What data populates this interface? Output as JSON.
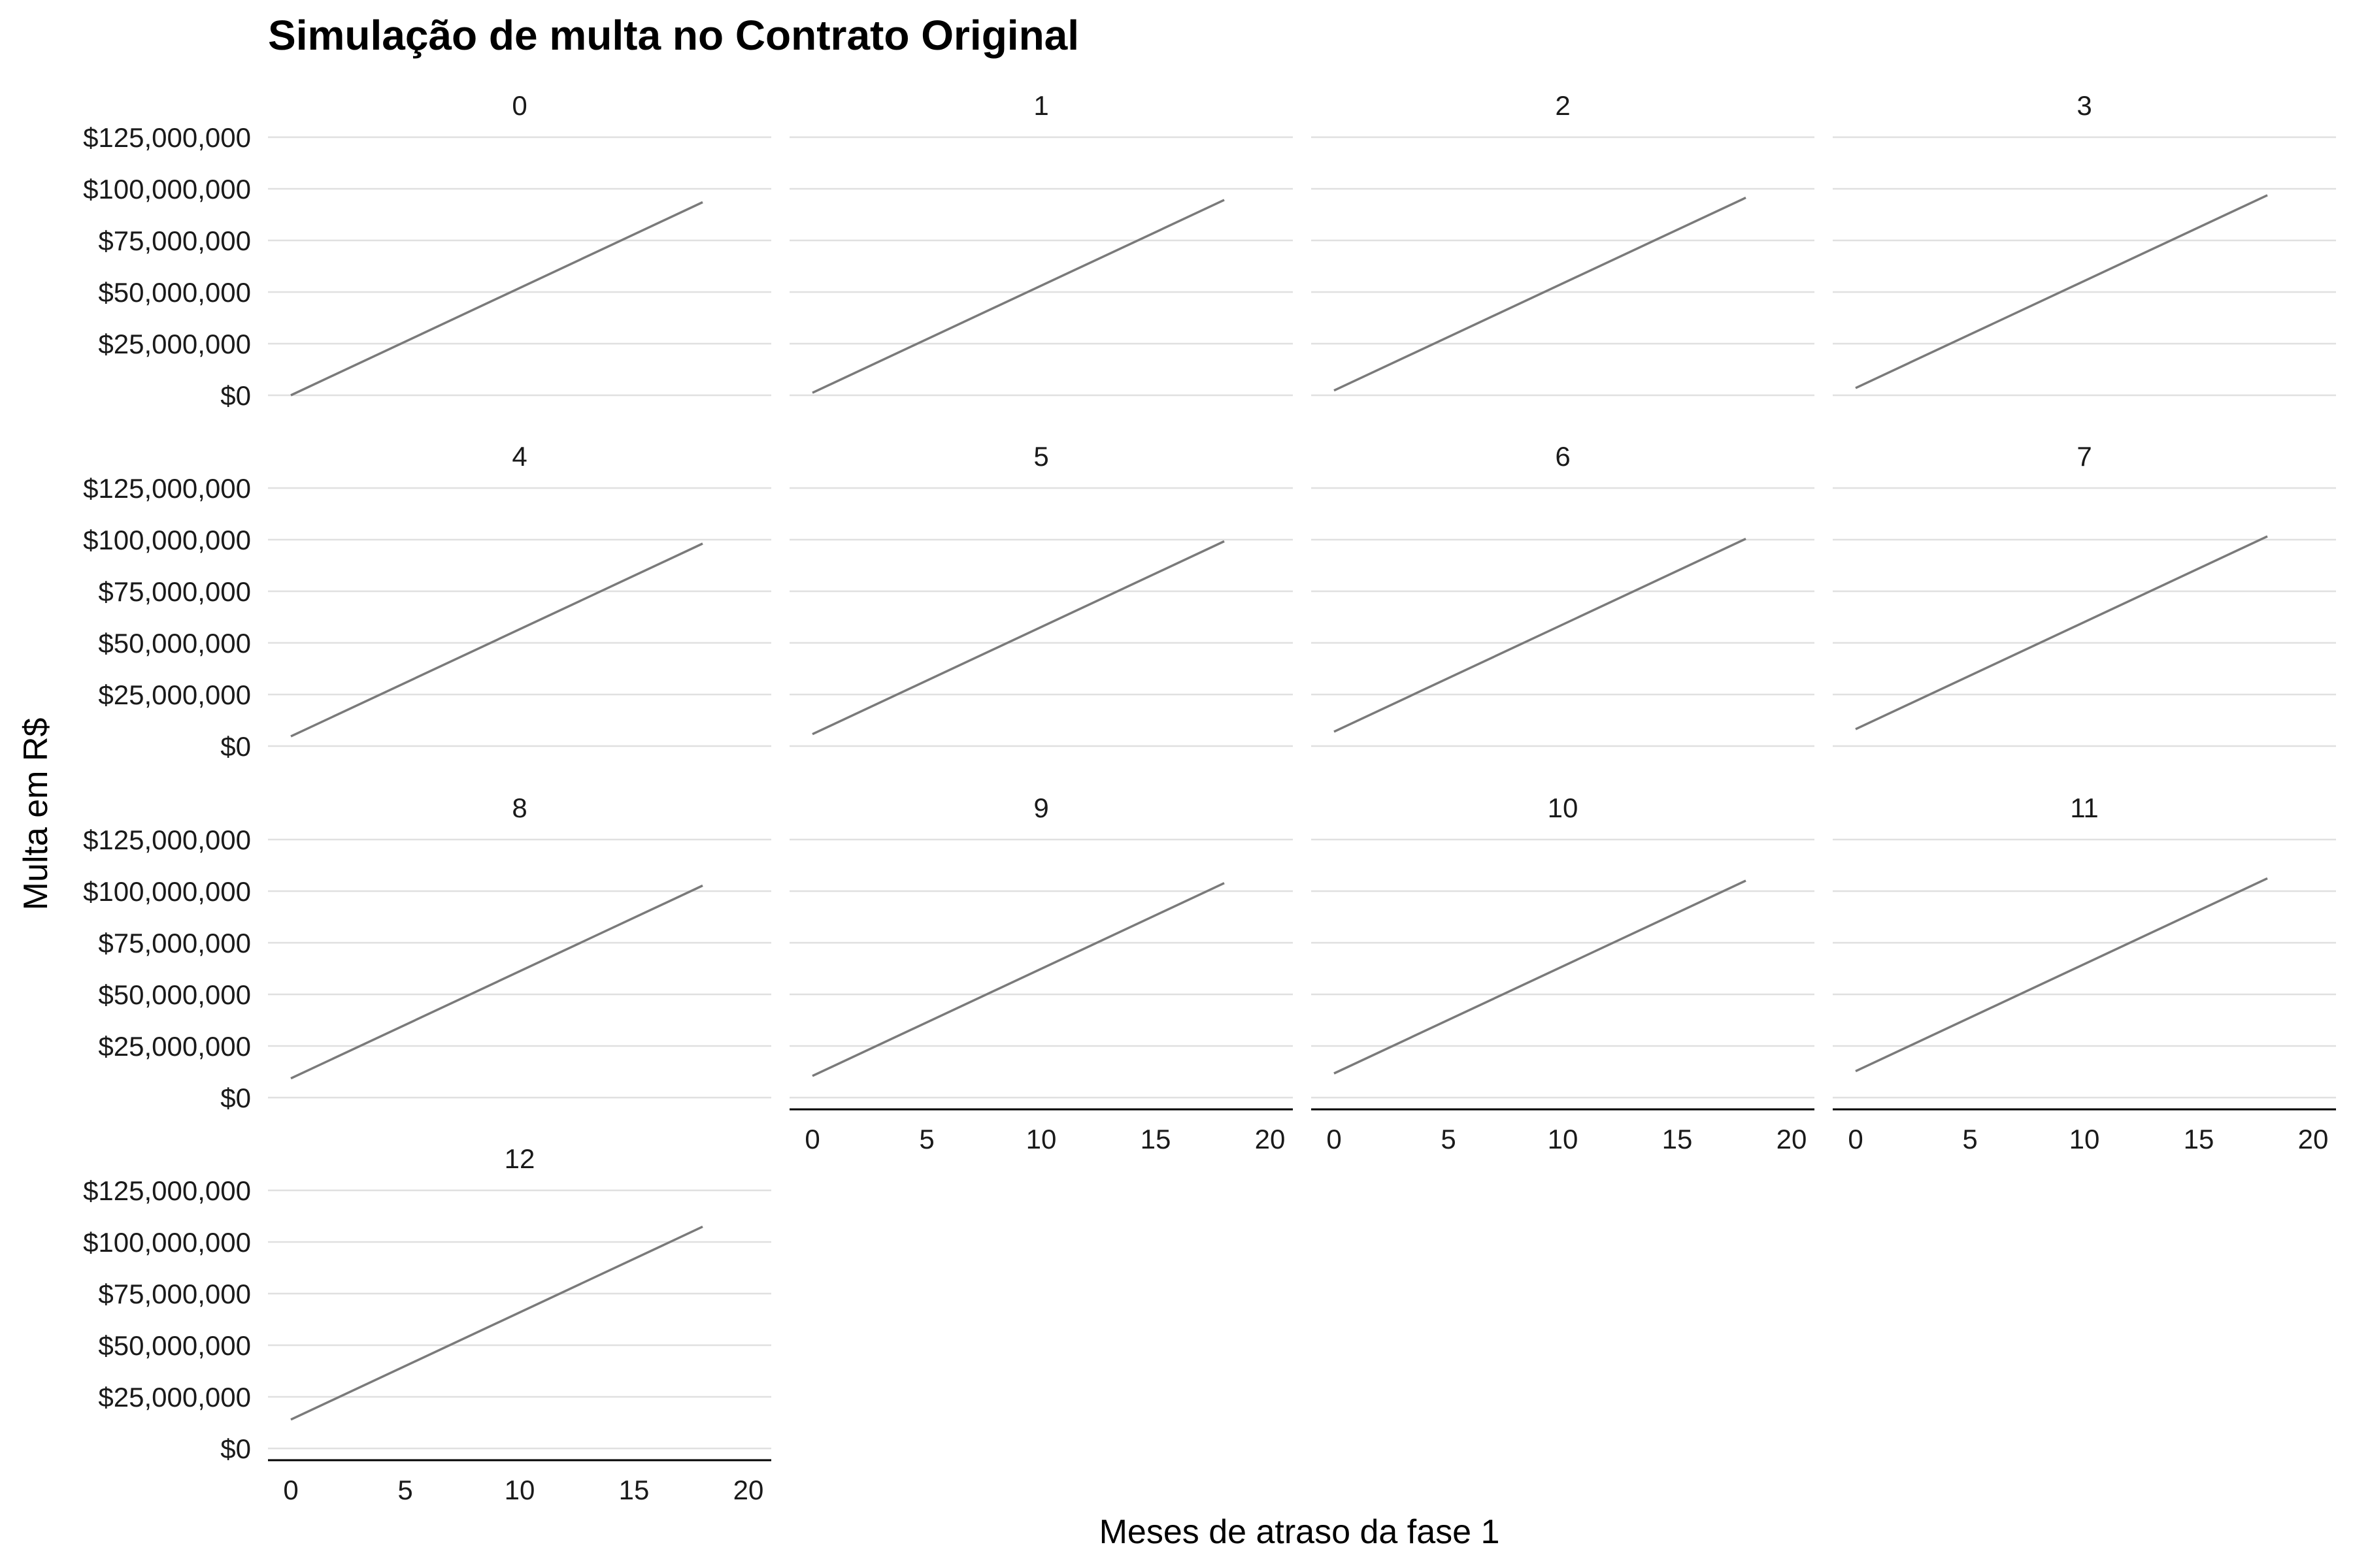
{
  "colors": {
    "line": "#7a7a7a",
    "grid": "#e0e0e0",
    "axis": "#000000",
    "background": "#ffffff"
  },
  "chart_data": {
    "type": "line",
    "title": "Simulação de multa no Contrato Original",
    "xlabel": "Meses de atraso da fase 1",
    "ylabel": "Multa em R$",
    "x_ticks": [
      "0",
      "5",
      "10",
      "15",
      "20"
    ],
    "y_ticks": [
      "$0",
      "$25,000,000",
      "$50,000,000",
      "$75,000,000",
      "$100,000,000",
      "$125,000,000"
    ],
    "xlim": [
      -1,
      21
    ],
    "ylim": [
      0,
      125000000
    ],
    "grid": "horizontal",
    "facet_by": "Meses de atraso",
    "panels": [
      {
        "label": "0",
        "x": [
          0,
          18
        ],
        "y": [
          0,
          93500000
        ]
      },
      {
        "label": "1",
        "x": [
          0,
          18
        ],
        "y": [
          1200000,
          94600000
        ]
      },
      {
        "label": "2",
        "x": [
          0,
          18
        ],
        "y": [
          2300000,
          95700000
        ]
      },
      {
        "label": "3",
        "x": [
          0,
          18
        ],
        "y": [
          3500000,
          96900000
        ]
      },
      {
        "label": "4",
        "x": [
          0,
          18
        ],
        "y": [
          4700000,
          98100000
        ]
      },
      {
        "label": "5",
        "x": [
          0,
          18
        ],
        "y": [
          5800000,
          99200000
        ]
      },
      {
        "label": "6",
        "x": [
          0,
          18
        ],
        "y": [
          7000000,
          100400000
        ]
      },
      {
        "label": "7",
        "x": [
          0,
          18
        ],
        "y": [
          8200000,
          101600000
        ]
      },
      {
        "label": "8",
        "x": [
          0,
          18
        ],
        "y": [
          9300000,
          102700000
        ]
      },
      {
        "label": "9",
        "x": [
          0,
          18
        ],
        "y": [
          10500000,
          103900000
        ]
      },
      {
        "label": "10",
        "x": [
          0,
          18
        ],
        "y": [
          11700000,
          105100000
        ]
      },
      {
        "label": "11",
        "x": [
          0,
          18
        ],
        "y": [
          12800000,
          106200000
        ]
      },
      {
        "label": "12",
        "x": [
          0,
          18
        ],
        "y": [
          14000000,
          107400000
        ]
      }
    ]
  }
}
